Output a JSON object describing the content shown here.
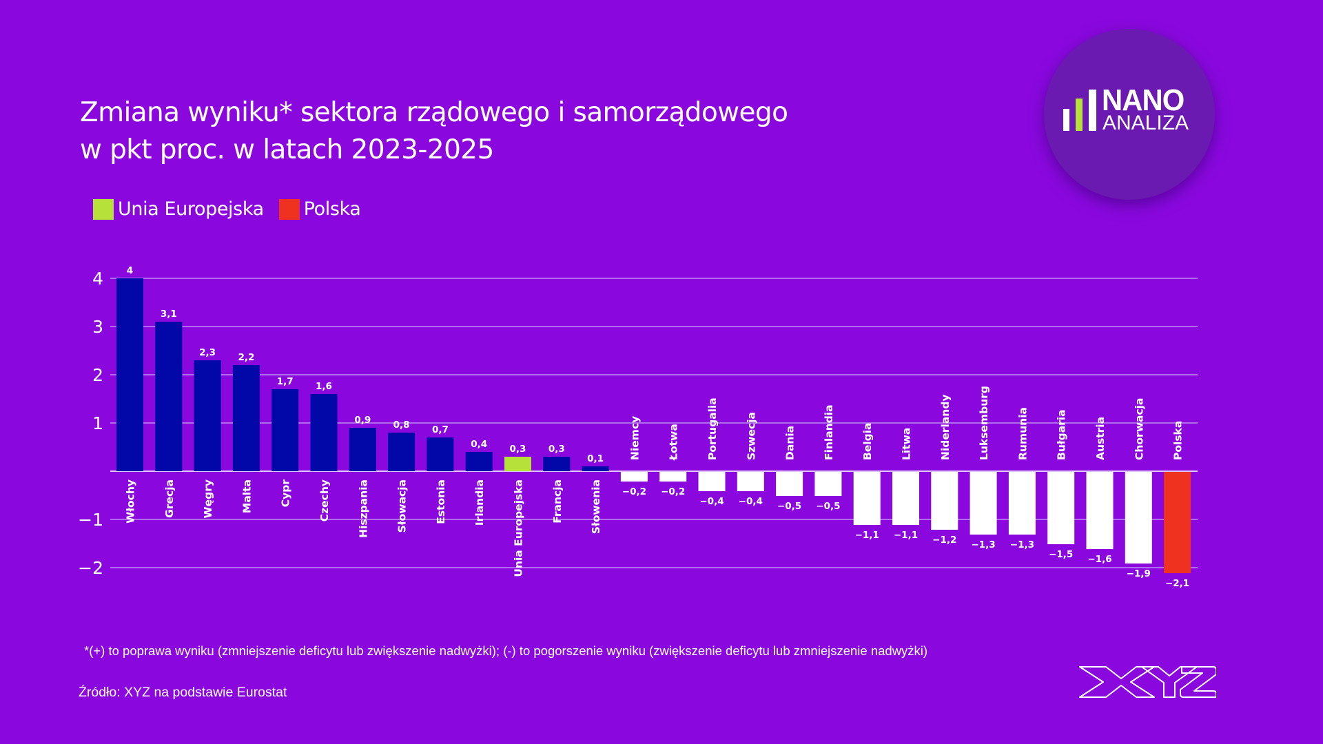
{
  "title": {
    "line1": "Zmiana wyniku* sektora rządowego i samorządowego",
    "line2": "w pkt proc. w latach 2023-2025"
  },
  "legend": [
    {
      "label": "Unia Europejska",
      "color": "#b5e13a"
    },
    {
      "label": "Polska",
      "color": "#ef311f"
    }
  ],
  "logo": {
    "brand_top": "NANO",
    "brand_bottom": "ANALIZA",
    "accent_color": "#b5e13a"
  },
  "footnote": "*(+) to poprawa wyniku (zmniejszenie deficytu lub zwiększenie nadwyżki); (-) to pogorszenie wyniku (zwiększenie deficytu lub zmniejszenie nadwyżki)",
  "source": "Źródło: XYZ na podstawie Eurostat",
  "publisher_logo": "XYZ",
  "colors": {
    "background": "#8a08de",
    "positive_bar": "#0208a8",
    "negative_bar": "#ffffff",
    "eu_bar": "#b5e13a",
    "poland_bar": "#ef311f",
    "gridline": "#c08cf0"
  },
  "chart_data": {
    "type": "bar",
    "title": "Zmiana wyniku* sektora rządowego i samorządowego w pkt proc. w latach 2023-2025",
    "xlabel": "",
    "ylabel": "",
    "ylim": [
      -2,
      4
    ],
    "yticks": [
      4,
      3,
      2,
      1,
      -1,
      -2
    ],
    "ytick_labels": [
      "4",
      "3",
      "2",
      "1",
      "−1",
      "−2"
    ],
    "grid": true,
    "legend_position": "top-left",
    "categories": [
      "Włochy",
      "Grecja",
      "Węgry",
      "Malta",
      "Cypr",
      "Czechy",
      "Hiszpania",
      "Słowacja",
      "Estonia",
      "Irlandia",
      "Unia Europejska",
      "Francja",
      "Słowenia",
      "Niemcy",
      "Łotwa",
      "Portugalia",
      "Szwecja",
      "Dania",
      "Finlandia",
      "Belgia",
      "Litwa",
      "Niderlandy",
      "Luksemburg",
      "Rumunia",
      "Bułgaria",
      "Austria",
      "Chorwacja",
      "Polska"
    ],
    "values": [
      4,
      3.1,
      2.3,
      2.2,
      1.7,
      1.6,
      0.9,
      0.8,
      0.7,
      0.4,
      0.3,
      0.3,
      0.1,
      -0.2,
      -0.2,
      -0.4,
      -0.4,
      -0.5,
      -0.5,
      -1.1,
      -1.1,
      -1.2,
      -1.3,
      -1.3,
      -1.5,
      -1.6,
      -1.9,
      -2.1
    ],
    "value_labels": [
      "4",
      "3,1",
      "2,3",
      "2,2",
      "1,7",
      "1,6",
      "0,9",
      "0,8",
      "0,7",
      "0,4",
      "0,3",
      "0,3",
      "0,1",
      "−0,2",
      "−0,2",
      "−0,4",
      "−0,4",
      "−0,5",
      "−0,5",
      "−1,1",
      "−1,1",
      "−1,2",
      "−1,3",
      "−1,3",
      "−1,5",
      "−1,6",
      "−1,9",
      "−2,1"
    ],
    "highlight": {
      "Unia Europejska": "eu",
      "Polska": "poland"
    }
  }
}
